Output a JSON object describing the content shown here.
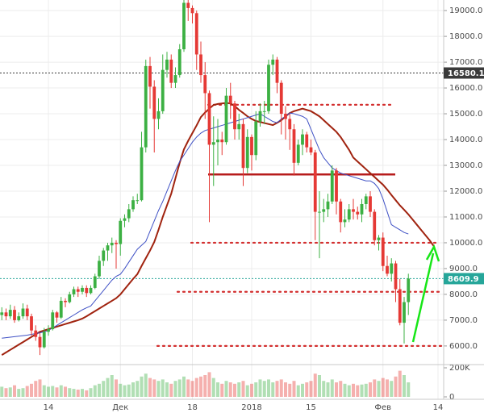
{
  "chart_data": {
    "type": "candlestick",
    "up_color": "#3cb043",
    "down_color": "#e53935",
    "categories": [
      null,
      null,
      null,
      null,
      null,
      null,
      null,
      null,
      null,
      null,
      null,
      "14",
      null,
      null,
      null,
      null,
      null,
      null,
      null,
      null,
      null,
      null,
      null,
      null,
      null,
      null,
      null,
      null,
      "Дек",
      null,
      null,
      null,
      null,
      null,
      null,
      null,
      null,
      null,
      null,
      null,
      null,
      null,
      null,
      null,
      null,
      "18",
      null,
      null,
      null,
      null,
      null,
      null,
      null,
      null,
      null,
      null,
      null,
      null,
      null,
      "2018",
      null,
      null,
      null,
      null,
      null,
      null,
      null,
      null,
      null,
      null,
      null,
      null,
      null,
      "15",
      null,
      null,
      null,
      null,
      null,
      null,
      null,
      null,
      null,
      null,
      null,
      null,
      null,
      null,
      null,
      null,
      "Фев",
      null,
      null,
      null,
      null,
      null,
      null,
      null,
      null,
      null,
      null,
      null,
      null,
      "14",
      null,
      null
    ],
    "open": [
      7200,
      7300,
      7150,
      7400,
      7000,
      7150,
      7450,
      7150,
      6600,
      6350,
      5950,
      6550,
      6650,
      7300,
      7100,
      7750,
      7700,
      8000,
      8200,
      8100,
      8250,
      8050,
      8250,
      8700,
      9300,
      9700,
      9900,
      10000,
      9950,
      10850,
      10950,
      11300,
      11650,
      11650,
      13700,
      16850,
      16050,
      14800,
      15100,
      16700,
      17100,
      16200,
      16500,
      17500,
      19300,
      19100,
      18900,
      17300,
      16500,
      15800,
      13800,
      13900,
      14000,
      13900,
      15700,
      15400,
      14400,
      14600,
      12900,
      14100,
      13400,
      14700,
      15100,
      15100,
      16900,
      17100,
      16200,
      15000,
      14800,
      14400,
      13100,
      13800,
      14200,
      13700,
      13500,
      11200,
      11200,
      11300,
      11600,
      12800,
      11600,
      10800,
      10900,
      11300,
      11200,
      11100,
      11500,
      11800,
      11200,
      10100,
      10200,
      9100,
      8800,
      9200,
      8200,
      6900,
      7700,
      null,
      null,
      null,
      null,
      null,
      null,
      null,
      null,
      null
    ],
    "high": [
      7500,
      7450,
      7600,
      7550,
      7300,
      7650,
      7600,
      7250,
      6800,
      6500,
      6700,
      6800,
      7400,
      7350,
      7900,
      7850,
      8100,
      8300,
      8300,
      8350,
      8350,
      8350,
      8800,
      9500,
      9800,
      10000,
      10200,
      10100,
      10950,
      11100,
      11500,
      11800,
      11900,
      14300,
      17100,
      17200,
      16300,
      15600,
      17300,
      17400,
      17300,
      16800,
      17700,
      19500,
      19700,
      19200,
      19000,
      17800,
      17000,
      15900,
      14900,
      14800,
      14300,
      16000,
      16200,
      15500,
      15000,
      14800,
      14400,
      14200,
      15100,
      15400,
      15500,
      17100,
      17300,
      17200,
      16300,
      15300,
      15000,
      14600,
      14000,
      14400,
      14300,
      14000,
      13600,
      12000,
      11700,
      11900,
      13000,
      12900,
      11700,
      11300,
      11500,
      11700,
      11400,
      11700,
      11900,
      12000,
      11300,
      10300,
      10400,
      9500,
      9400,
      9300,
      8600,
      7900,
      8800,
      null,
      null,
      null,
      null,
      null,
      null,
      null,
      null,
      null
    ],
    "low": [
      7000,
      7000,
      7050,
      6900,
      6950,
      7050,
      7000,
      6400,
      6200,
      5650,
      5900,
      6400,
      6600,
      6900,
      7050,
      7500,
      7650,
      7900,
      7900,
      8000,
      7900,
      8000,
      8200,
      8600,
      9100,
      9300,
      9600,
      9000,
      9500,
      10600,
      10800,
      11200,
      11500,
      11600,
      13500,
      15200,
      13500,
      14400,
      15000,
      16400,
      16000,
      16000,
      16400,
      17400,
      18600,
      18500,
      16700,
      16200,
      14800,
      10800,
      12200,
      13000,
      13400,
      13800,
      14800,
      14000,
      14000,
      12200,
      12700,
      12800,
      13200,
      14500,
      14600,
      15000,
      16500,
      15800,
      14200,
      14000,
      13600,
      12600,
      13000,
      13400,
      13500,
      13400,
      10100,
      9400,
      10800,
      11000,
      11500,
      11100,
      10400,
      10600,
      10800,
      10900,
      10900,
      10800,
      11300,
      11000,
      9900,
      9700,
      8900,
      8700,
      8500,
      7700,
      6800,
      6100,
      7200,
      null,
      null,
      null,
      null,
      null,
      null,
      null,
      null,
      null
    ],
    "close": [
      7300,
      7150,
      7400,
      7000,
      7150,
      7450,
      7150,
      6600,
      6350,
      5950,
      6550,
      6650,
      7300,
      7100,
      7750,
      7700,
      8000,
      8200,
      8100,
      8250,
      8050,
      8250,
      8700,
      9300,
      9700,
      9900,
      10000,
      9950,
      10850,
      10950,
      11300,
      11650,
      11650,
      13700,
      16850,
      16050,
      14800,
      15100,
      16700,
      17100,
      16200,
      16500,
      17500,
      19300,
      19100,
      18900,
      17300,
      16500,
      15800,
      13800,
      13900,
      14000,
      13900,
      15700,
      15400,
      14400,
      14600,
      12900,
      14100,
      13400,
      14700,
      15100,
      15100,
      16900,
      17100,
      16200,
      15000,
      14800,
      14400,
      13100,
      13800,
      14200,
      13700,
      13500,
      11200,
      11200,
      11300,
      11600,
      12800,
      11600,
      10800,
      10900,
      11300,
      11200,
      11100,
      11500,
      11800,
      11200,
      10100,
      10200,
      9100,
      8800,
      9200,
      8200,
      6900,
      7700,
      8610,
      null,
      null,
      null,
      null,
      null,
      null,
      null,
      null,
      null
    ],
    "lines": [
      {
        "color": "#a0230f",
        "width": 2,
        "values": [
          5650,
          5750,
          5850,
          5950,
          6050,
          6150,
          6250,
          6350,
          6450,
          6550,
          6600,
          6650,
          6700,
          6750,
          6800,
          6850,
          6900,
          6950,
          7000,
          7060,
          7150,
          7250,
          7350,
          7450,
          7550,
          7650,
          7750,
          7850,
          8000,
          8200,
          8400,
          8600,
          8780,
          9100,
          9400,
          9700,
          10030,
          10500,
          11000,
          11450,
          11900,
          12500,
          13100,
          13620,
          13950,
          14250,
          14550,
          14870,
          15050,
          15200,
          15340,
          15380,
          15400,
          15420,
          15400,
          15300,
          15150,
          15030,
          14900,
          14800,
          14720,
          14680,
          14640,
          14600,
          14560,
          14650,
          14750,
          14900,
          15030,
          15100,
          15150,
          15200,
          15150,
          15100,
          15000,
          14900,
          14750,
          14600,
          14450,
          14300,
          14100,
          13850,
          13600,
          13300,
          13150,
          13000,
          12850,
          12700,
          12550,
          12400,
          12250,
          12060,
          11850,
          11650,
          11450,
          11280,
          11100,
          10900,
          10700,
          10500,
          10300,
          10100,
          9870,
          null,
          null,
          null
        ]
      },
      {
        "color": "#3f51c5",
        "width": 1,
        "values": [
          6300,
          6320,
          6340,
          6360,
          6380,
          6400,
          6420,
          6450,
          6480,
          6510,
          6550,
          6600,
          6700,
          6800,
          6900,
          7000,
          7100,
          7200,
          7300,
          7400,
          7480,
          7550,
          7750,
          7950,
          8150,
          8350,
          8550,
          8700,
          8780,
          9000,
          9250,
          9500,
          9750,
          9900,
          10050,
          10450,
          10850,
          11250,
          11600,
          12000,
          12400,
          12800,
          13150,
          13400,
          13650,
          13900,
          14100,
          14250,
          14350,
          14400,
          14450,
          14500,
          14550,
          14600,
          14650,
          14700,
          14750,
          14800,
          14850,
          14900,
          14950,
          15000,
          14900,
          14800,
          14700,
          14650,
          14800,
          14900,
          15030,
          15000,
          14950,
          14900,
          14800,
          14400,
          14000,
          13600,
          13300,
          13100,
          12900,
          12800,
          12700,
          12650,
          12600,
          12550,
          12500,
          12450,
          12400,
          12400,
          12300,
          12100,
          11700,
          11200,
          10700,
          10600,
          10500,
          10400,
          10340,
          null,
          null,
          null,
          null,
          null,
          null,
          null,
          null,
          null
        ]
      }
    ],
    "levels": [
      {
        "value": 15350,
        "color": "#d32f2f",
        "dashed": true
      },
      {
        "value": 12650,
        "color": "#b71c1c",
        "dashed": false
      },
      {
        "value": 10000,
        "color": "#d32f2f",
        "dashed": true
      },
      {
        "value": 8100,
        "color": "#d32f2f",
        "dashed": true
      },
      {
        "value": 6000,
        "color": "#d32f2f",
        "dashed": true
      }
    ],
    "price_markers": [
      {
        "value": 16580.1,
        "color": "#3a3a3a"
      },
      {
        "value": 8609.9,
        "color": "#26a69a"
      }
    ],
    "ylim": [
      5340,
      19410
    ],
    "yticks": [
      {
        "value": 6000,
        "label": "6000.0"
      },
      {
        "value": 7000,
        "label": "7000.0"
      },
      {
        "value": 8000,
        "label": "8000.0"
      },
      {
        "value": 9000,
        "label": "9000.0"
      },
      {
        "value": 10000,
        "label": "10000.0"
      },
      {
        "value": 11000,
        "label": "11000.0"
      },
      {
        "value": 12000,
        "label": "12000.0"
      },
      {
        "value": 13000,
        "label": "13000.0"
      },
      {
        "value": 14000,
        "label": "14000.0"
      },
      {
        "value": 15000,
        "label": "15000.0"
      },
      {
        "value": 16000,
        "label": "16000.0"
      },
      {
        "value": 17000,
        "label": "17000.0"
      },
      {
        "value": 18000,
        "label": "18000.0"
      },
      {
        "value": 19000,
        "label": "19000.0"
      }
    ],
    "grid": true,
    "volume": {
      "values": [
        70000,
        60000,
        65000,
        80000,
        55000,
        60000,
        75000,
        90000,
        110000,
        120000,
        80000,
        70000,
        75000,
        65000,
        80000,
        70000,
        60000,
        55000,
        50000,
        55000,
        45000,
        60000,
        80000,
        90000,
        110000,
        130000,
        150000,
        120000,
        90000,
        80000,
        85000,
        100000,
        110000,
        140000,
        160000,
        130000,
        120000,
        110000,
        120000,
        100000,
        90000,
        110000,
        120000,
        140000,
        120000,
        110000,
        130000,
        140000,
        150000,
        170000,
        130000,
        100000,
        90000,
        110000,
        100000,
        90000,
        100000,
        110000,
        80000,
        90000,
        100000,
        120000,
        110000,
        120000,
        100000,
        110000,
        120000,
        100000,
        90000,
        110000,
        80000,
        90000,
        100000,
        110000,
        160000,
        150000,
        110000,
        100000,
        120000,
        100000,
        110000,
        90000,
        80000,
        90000,
        80000,
        85000,
        90000,
        100000,
        120000,
        110000,
        130000,
        120000,
        110000,
        140000,
        180000,
        150000,
        100000,
        null,
        null,
        null,
        null,
        null,
        null,
        null,
        null,
        null
      ],
      "ylim": [
        0,
        216700
      ],
      "yticks": [
        {
          "value": 200000,
          "label": "200K"
        },
        0
      ]
    }
  }
}
